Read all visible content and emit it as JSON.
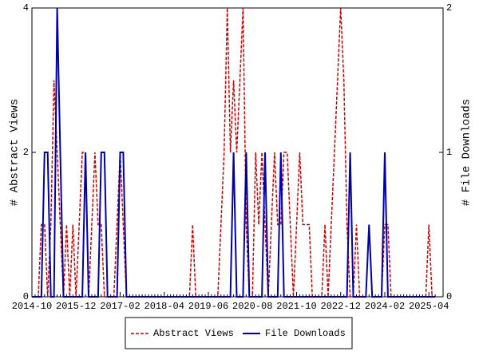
{
  "chart_data": {
    "type": "line",
    "ylabel": "# Abstract Views",
    "y2label": "# File Downloads",
    "categories": [
      "2014-10",
      null,
      null,
      null,
      null,
      null,
      null,
      null,
      null,
      null,
      null,
      null,
      null,
      null,
      "2015-12",
      null,
      null,
      null,
      null,
      null,
      null,
      null,
      null,
      null,
      null,
      null,
      null,
      null,
      "2017-02",
      null,
      null,
      null,
      null,
      null,
      null,
      null,
      null,
      null,
      null,
      null,
      null,
      null,
      "2018-04",
      null,
      null,
      null,
      null,
      null,
      null,
      null,
      null,
      null,
      null,
      null,
      null,
      null,
      "2019-06",
      null,
      null,
      null,
      null,
      null,
      null,
      null,
      null,
      null,
      null,
      null,
      null,
      null,
      "2020-08",
      null,
      null,
      null,
      null,
      null,
      null,
      null,
      null,
      null,
      null,
      null,
      null,
      null,
      "2021-10",
      null,
      null,
      null,
      null,
      null,
      null,
      null,
      null,
      null,
      null,
      null,
      null,
      null,
      "2022-12",
      null,
      null,
      null,
      null,
      null,
      null,
      null,
      null,
      null,
      null,
      null,
      null,
      null,
      "2024-02",
      null,
      null,
      null,
      null,
      null,
      null,
      null,
      null,
      null,
      null,
      null,
      null,
      null,
      "2025-04",
      null,
      null
    ],
    "series": [
      {
        "name": "Abstract Views",
        "color": "#cc0000",
        "dash": true,
        "values": [
          0,
          0,
          0,
          1,
          1,
          0,
          1,
          3,
          2,
          1,
          0,
          1,
          0,
          1,
          0,
          1,
          2,
          2,
          0,
          1,
          2,
          1,
          1,
          0,
          0,
          0,
          0,
          1,
          2,
          1,
          0,
          0,
          0,
          0,
          0,
          0,
          0,
          0,
          0,
          0,
          0,
          0,
          0,
          0,
          0,
          0,
          0,
          0,
          0,
          0,
          0,
          1,
          0,
          0,
          0,
          0,
          0,
          0,
          0,
          0,
          1,
          2,
          4,
          2,
          3,
          2,
          3,
          4,
          1,
          0,
          0,
          2,
          1,
          2,
          1,
          0,
          1,
          2,
          1,
          1,
          2,
          2,
          1,
          0,
          1,
          2,
          1,
          1,
          1,
          0,
          0,
          0,
          0,
          1,
          0,
          1,
          2,
          3,
          4,
          3,
          1,
          0,
          0,
          1,
          0,
          0,
          0,
          1,
          0,
          0,
          0,
          0,
          1,
          1,
          0,
          0,
          0,
          0,
          0,
          0,
          0,
          0,
          0,
          0,
          0,
          0,
          1,
          0,
          0
        ]
      },
      {
        "name": "File Downloads",
        "color": "#0000aa",
        "dash": false,
        "axis": "y2",
        "values": [
          0,
          0,
          0,
          0,
          1,
          1,
          0,
          0,
          2,
          1,
          0,
          0,
          0,
          0,
          0,
          0,
          0,
          1,
          0,
          0,
          0,
          0,
          1,
          1,
          0,
          0,
          0,
          0,
          1,
          1,
          0,
          0,
          0,
          0,
          0,
          0,
          0,
          0,
          0,
          0,
          0,
          0,
          0,
          0,
          0,
          0,
          0,
          0,
          0,
          0,
          0,
          0,
          0,
          0,
          0,
          0,
          0,
          0,
          0,
          0,
          0,
          0,
          0,
          0,
          1,
          0,
          0,
          0,
          1,
          0,
          0,
          0,
          0,
          0,
          1,
          0,
          0,
          0,
          0,
          1,
          0,
          0,
          0,
          0,
          0,
          0,
          0,
          0,
          0,
          0,
          0,
          0,
          0,
          0,
          0,
          0,
          0,
          0,
          0,
          0,
          0,
          1,
          0,
          0,
          0,
          0,
          0,
          0.5,
          0,
          0,
          0,
          0,
          1,
          0,
          0,
          0,
          0,
          0,
          0,
          0,
          0,
          0,
          0,
          0,
          0,
          0,
          0,
          0,
          0
        ]
      }
    ],
    "ylim": [
      0,
      4
    ],
    "yticks": [
      0,
      2,
      4
    ],
    "y2lim": [
      0,
      2
    ],
    "y2ticks": [
      0,
      1,
      2
    ],
    "legend": "bottom"
  }
}
